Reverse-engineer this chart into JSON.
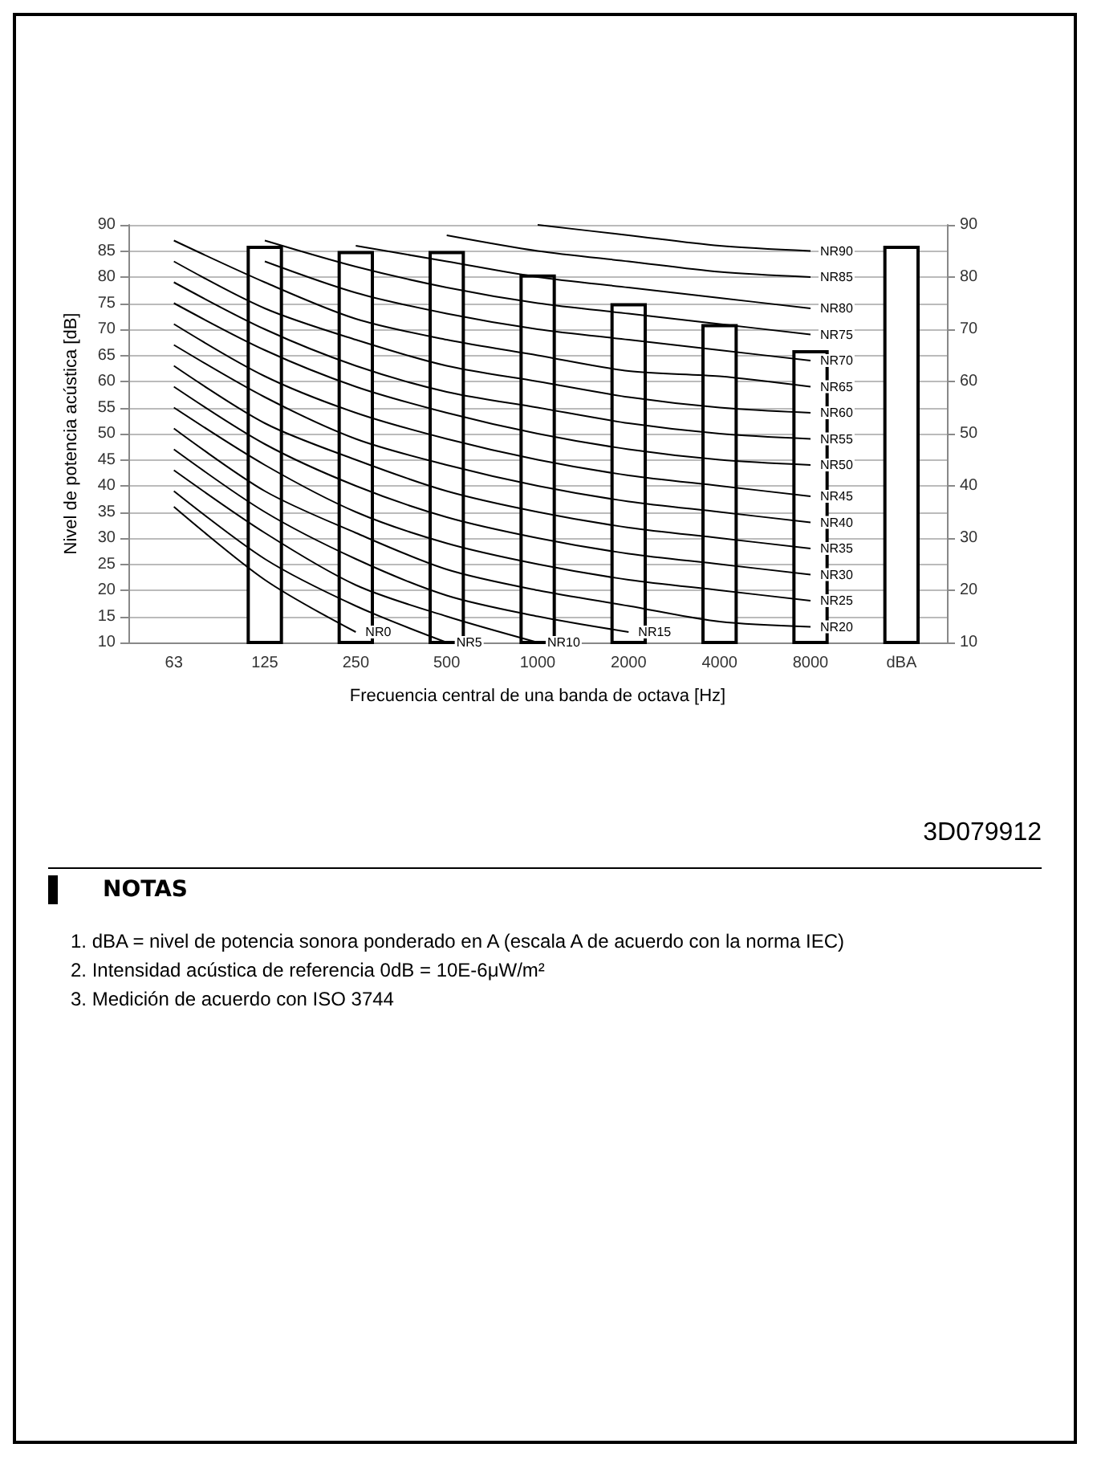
{
  "chart_data": {
    "type": "bar",
    "xlabel": "Frecuencia central de una banda de octava [Hz]",
    "ylabel": "Nivel de potencia acústica [dB]",
    "categories": [
      "63",
      "125",
      "250",
      "500",
      "1000",
      "2000",
      "4000",
      "8000",
      "dBA"
    ],
    "series": [
      {
        "color": "#ffffff",
        "values": [
          10,
          86,
          85,
          85,
          80.5,
          75,
          71,
          66,
          86
        ]
      },
      {
        "type": "line",
        "name": "NR0",
        "color": "#000000",
        "values": [
          36,
          22,
          12,
          null,
          null,
          null,
          null,
          null,
          null
        ]
      },
      {
        "type": "line",
        "name": "NR5",
        "color": "#000000",
        "values": [
          39,
          26,
          17,
          10,
          null,
          null,
          null,
          null,
          null
        ]
      },
      {
        "type": "line",
        "name": "NR10",
        "color": "#000000",
        "values": [
          43,
          31,
          21,
          15,
          10,
          null,
          null,
          null,
          null
        ]
      },
      {
        "type": "line",
        "name": "NR15",
        "color": "#000000",
        "values": [
          47,
          35,
          26,
          19,
          15,
          12,
          null,
          null,
          null
        ]
      },
      {
        "type": "line",
        "name": "NR20",
        "color": "#000000",
        "values": [
          51,
          39,
          31,
          24,
          20,
          17,
          14,
          13,
          null
        ]
      },
      {
        "type": "line",
        "name": "NR25",
        "color": "#000000",
        "values": [
          55,
          44,
          35,
          29,
          25,
          22,
          20,
          18,
          null
        ]
      },
      {
        "type": "line",
        "name": "NR30",
        "color": "#000000",
        "values": [
          59,
          48,
          40,
          34,
          30,
          27,
          25,
          23,
          null
        ]
      },
      {
        "type": "line",
        "name": "NR35",
        "color": "#000000",
        "values": [
          63,
          52,
          45,
          39,
          35,
          32,
          30,
          28,
          null
        ]
      },
      {
        "type": "line",
        "name": "NR40",
        "color": "#000000",
        "values": [
          67,
          57,
          49,
          44,
          40,
          37,
          35,
          33,
          null
        ]
      },
      {
        "type": "line",
        "name": "NR45",
        "color": "#000000",
        "values": [
          71,
          61,
          54,
          49,
          45,
          42,
          40,
          38,
          null
        ]
      },
      {
        "type": "line",
        "name": "NR50",
        "color": "#000000",
        "values": [
          75,
          66,
          59,
          54,
          50,
          47,
          45,
          44,
          null
        ]
      },
      {
        "type": "line",
        "name": "NR55",
        "color": "#000000",
        "values": [
          79,
          70,
          63,
          58,
          55,
          52,
          50,
          49,
          null
        ]
      },
      {
        "type": "line",
        "name": "NR60",
        "color": "#000000",
        "values": [
          83,
          74,
          68,
          63,
          60,
          57,
          55,
          54,
          null
        ]
      },
      {
        "type": "line",
        "name": "NR65",
        "color": "#000000",
        "values": [
          87,
          79,
          72,
          68,
          65,
          62,
          61,
          59,
          null
        ]
      },
      {
        "type": "line",
        "name": "NR70",
        "color": "#000000",
        "values": [
          null,
          83,
          77,
          73,
          70,
          68,
          66,
          64,
          null
        ]
      },
      {
        "type": "line",
        "name": "NR75",
        "color": "#000000",
        "values": [
          null,
          87,
          82,
          78,
          75,
          73,
          71,
          69,
          null
        ]
      },
      {
        "type": "line",
        "name": "NR80",
        "color": "#000000",
        "values": [
          null,
          null,
          86,
          83,
          80,
          78,
          76,
          74,
          null
        ]
      },
      {
        "type": "line",
        "name": "NR85",
        "color": "#000000",
        "values": [
          null,
          null,
          null,
          88,
          85,
          83,
          81,
          80,
          null
        ]
      },
      {
        "type": "line",
        "name": "NR90",
        "color": "#000000",
        "values": [
          null,
          null,
          null,
          null,
          90,
          88,
          86,
          85,
          null
        ]
      }
    ],
    "ylim": [
      10,
      90
    ],
    "yticks": [
      10,
      15,
      20,
      25,
      30,
      35,
      40,
      45,
      50,
      55,
      60,
      65,
      70,
      75,
      80,
      85,
      90
    ],
    "y2lim": [
      10,
      90
    ],
    "y2ticks": [
      10,
      20,
      30,
      40,
      50,
      60,
      70,
      80,
      90
    ],
    "grid": "y",
    "annotations": [
      "3D079912",
      "NOTAS",
      "1.  dBA = nivel de potencia sonora ponderado en A (escala A de acuerdo con la norma IEC)",
      "2.  Intensidad acústica de referencia 0dB = 10E-6μW/m²",
      "3.  Medición de acuerdo con ISO 3744"
    ]
  }
}
